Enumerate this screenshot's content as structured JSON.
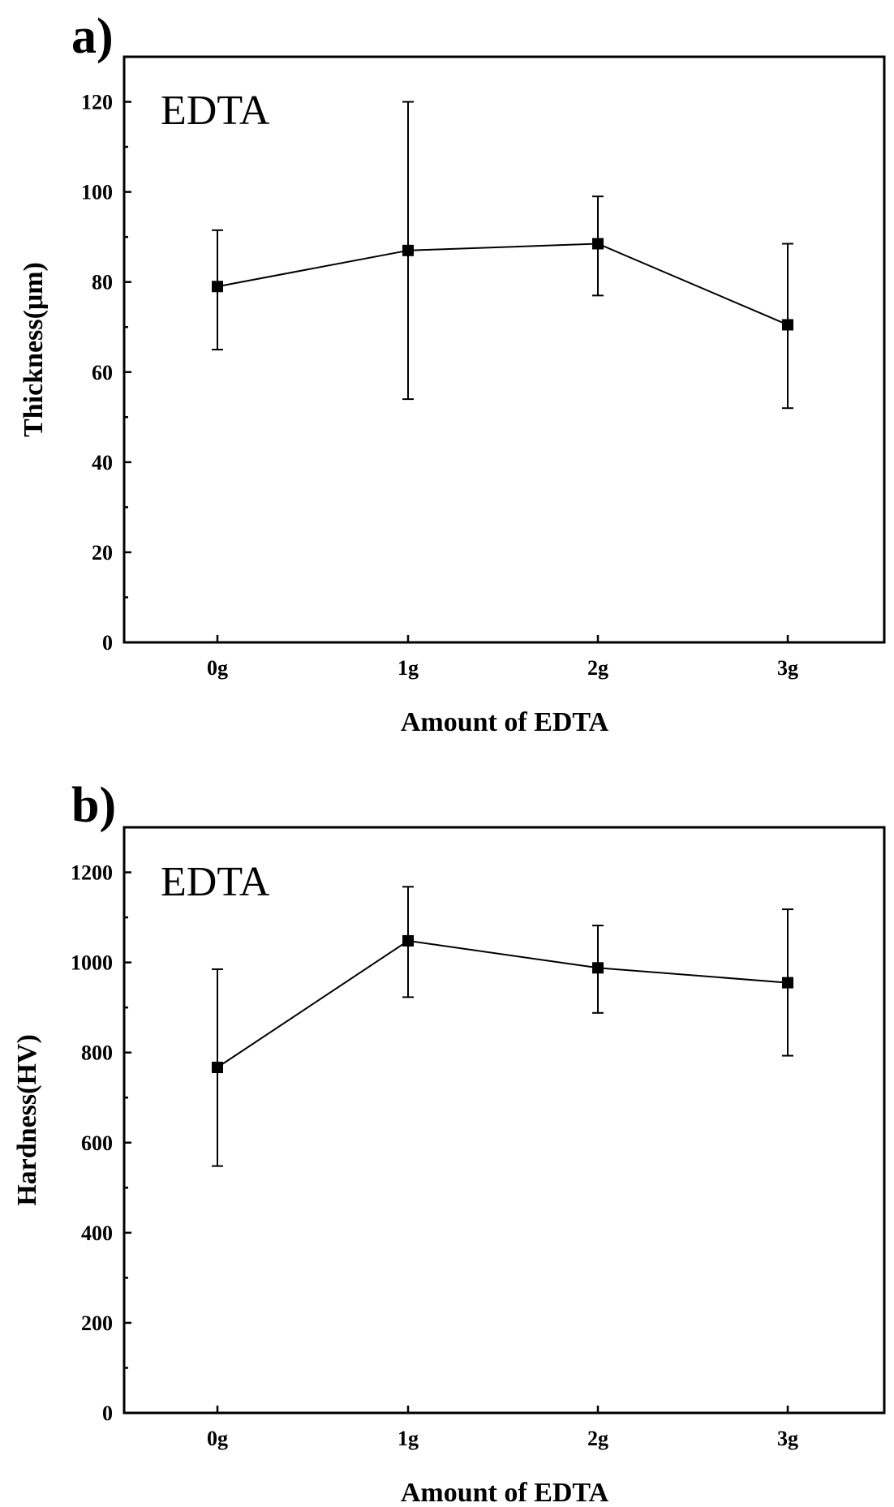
{
  "chart_data": [
    {
      "type": "line",
      "panel_label": "a)",
      "inset_label": "EDTA",
      "xlabel": "Amount of EDTA",
      "ylabel": "Thickness(μm)",
      "categories": [
        "0g",
        "1g",
        "2g",
        "3g"
      ],
      "values": [
        79,
        87,
        88.5,
        70.5
      ],
      "error_low": [
        65,
        54,
        77,
        52
      ],
      "error_high": [
        91.5,
        120,
        99,
        88.5
      ],
      "ylim": [
        0,
        130
      ],
      "yticks": [
        0,
        20,
        40,
        60,
        80,
        100,
        120
      ],
      "ytick_labels": [
        "0",
        "20",
        "40",
        "60",
        "80",
        "100",
        "120"
      ]
    },
    {
      "type": "line",
      "panel_label": "b)",
      "inset_label": "EDTA",
      "xlabel": "Amount of EDTA",
      "ylabel": "Hardness(HV)",
      "categories": [
        "0g",
        "1g",
        "2g",
        "3g"
      ],
      "values": [
        767,
        1048,
        988,
        955
      ],
      "error_low": [
        548,
        923,
        888,
        793
      ],
      "error_high": [
        985,
        1168,
        1082,
        1118
      ],
      "ylim": [
        0,
        1300
      ],
      "yticks": [
        0,
        200,
        400,
        600,
        800,
        1000,
        1200
      ],
      "ytick_labels": [
        "0",
        "200",
        "400",
        "600",
        "800",
        "1000",
        "1200"
      ]
    }
  ]
}
